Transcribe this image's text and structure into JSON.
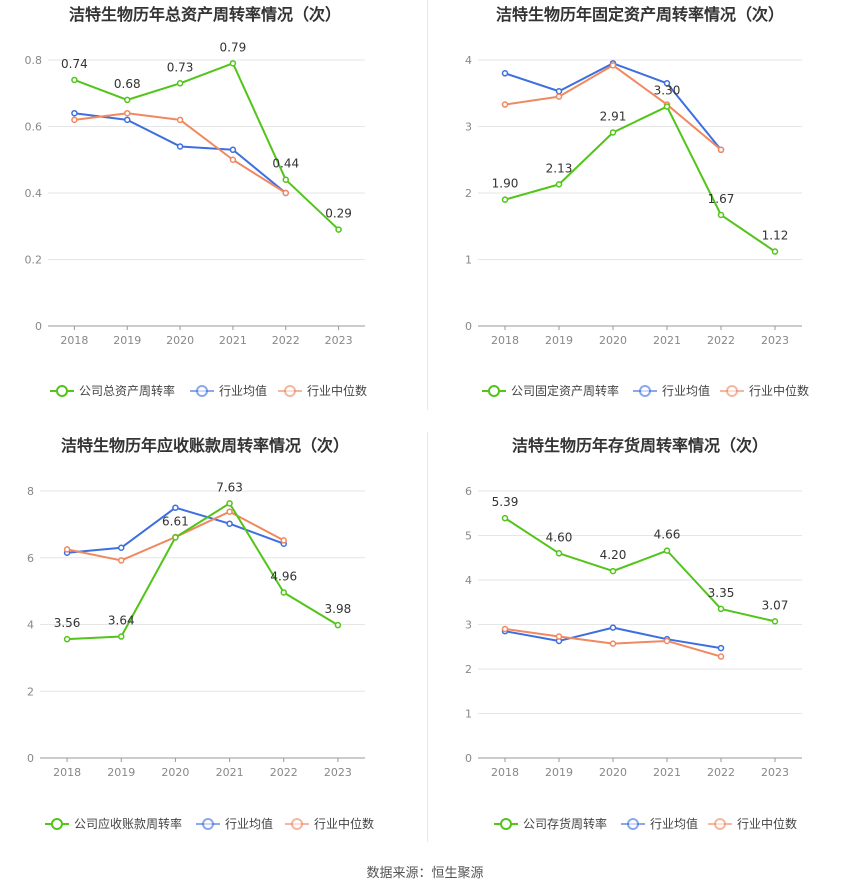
{
  "colors": {
    "company": "#52c41a",
    "avg": "#3d6fe0",
    "median": "#f08860",
    "grid": "#e6e6e6",
    "axis": "#999999",
    "text": "#333333"
  },
  "source_text": "数据来源：恒生聚源",
  "chart_data": [
    {
      "type": "line",
      "title": "洁特生物历年总资产周转率情况（次）",
      "categories": [
        "2018",
        "2019",
        "2020",
        "2021",
        "2022",
        "2023"
      ],
      "ylim": [
        0,
        0.8
      ],
      "yticks": [
        0,
        0.2,
        0.4,
        0.6,
        0.8
      ],
      "ytick_labels": [
        "0",
        "0.2",
        "0.4",
        "0.6",
        "0.8"
      ],
      "series": [
        {
          "name": "公司总资产周转率",
          "key": "company",
          "values": [
            0.74,
            0.68,
            0.73,
            0.79,
            0.44,
            0.29
          ],
          "labels": [
            "0.74",
            "0.68",
            "0.73",
            "0.79",
            "0.44",
            "0.29"
          ]
        },
        {
          "name": "行业均值",
          "key": "avg",
          "values": [
            0.64,
            0.62,
            0.54,
            0.53,
            0.4,
            null
          ]
        },
        {
          "name": "行业中位数",
          "key": "median",
          "values": [
            0.62,
            0.64,
            0.62,
            0.5,
            0.4,
            null
          ]
        }
      ]
    },
    {
      "type": "line",
      "title": "洁特生物历年固定资产周转率情况（次）",
      "categories": [
        "2018",
        "2019",
        "2020",
        "2021",
        "2022",
        "2023"
      ],
      "ylim": [
        0,
        4
      ],
      "yticks": [
        0,
        1,
        2,
        3,
        4
      ],
      "ytick_labels": [
        "0",
        "1",
        "2",
        "3",
        "4"
      ],
      "series": [
        {
          "name": "公司固定资产周转率",
          "key": "company",
          "values": [
            1.9,
            2.13,
            2.91,
            3.3,
            1.67,
            1.12
          ],
          "labels": [
            "1.90",
            "2.13",
            "2.91",
            "3.30",
            "1.67",
            "1.12"
          ]
        },
        {
          "name": "行业均值",
          "key": "avg",
          "values": [
            3.8,
            3.53,
            3.95,
            3.65,
            2.65,
            null
          ]
        },
        {
          "name": "行业中位数",
          "key": "median",
          "values": [
            3.33,
            3.45,
            3.92,
            3.33,
            2.65,
            null
          ]
        }
      ]
    },
    {
      "type": "line",
      "title": "洁特生物历年应收账款周转率情况（次）",
      "categories": [
        "2018",
        "2019",
        "2020",
        "2021",
        "2022",
        "2023"
      ],
      "ylim": [
        0,
        8
      ],
      "yticks": [
        0,
        2,
        4,
        6,
        8
      ],
      "ytick_labels": [
        "0",
        "2",
        "4",
        "6",
        "8"
      ],
      "series": [
        {
          "name": "公司应收账款周转率",
          "key": "company",
          "values": [
            3.56,
            3.64,
            6.61,
            7.63,
            4.96,
            3.98
          ],
          "labels": [
            "3.56",
            "3.64",
            "6.61",
            "7.63",
            "4.96",
            "3.98"
          ]
        },
        {
          "name": "行业均值",
          "key": "avg",
          "values": [
            6.15,
            6.3,
            7.5,
            7.02,
            6.42,
            null
          ]
        },
        {
          "name": "行业中位数",
          "key": "median",
          "values": [
            6.25,
            5.92,
            6.62,
            7.38,
            6.52,
            null
          ]
        }
      ]
    },
    {
      "type": "line",
      "title": "洁特生物历年存货周转率情况（次）",
      "categories": [
        "2018",
        "2019",
        "2020",
        "2021",
        "2022",
        "2023"
      ],
      "ylim": [
        0,
        6
      ],
      "yticks": [
        0,
        1,
        2,
        3,
        4,
        5,
        6
      ],
      "ytick_labels": [
        "0",
        "1",
        "2",
        "3",
        "4",
        "5",
        "6"
      ],
      "series": [
        {
          "name": "公司存货周转率",
          "key": "company",
          "values": [
            5.39,
            4.6,
            4.2,
            4.66,
            3.35,
            3.07
          ],
          "labels": [
            "5.39",
            "4.60",
            "4.20",
            "4.66",
            "3.35",
            "3.07"
          ]
        },
        {
          "name": "行业均值",
          "key": "avg",
          "values": [
            2.85,
            2.63,
            2.93,
            2.67,
            2.47,
            null
          ]
        },
        {
          "name": "行业中位数",
          "key": "median",
          "values": [
            2.9,
            2.73,
            2.57,
            2.63,
            2.28,
            null
          ]
        }
      ]
    }
  ]
}
